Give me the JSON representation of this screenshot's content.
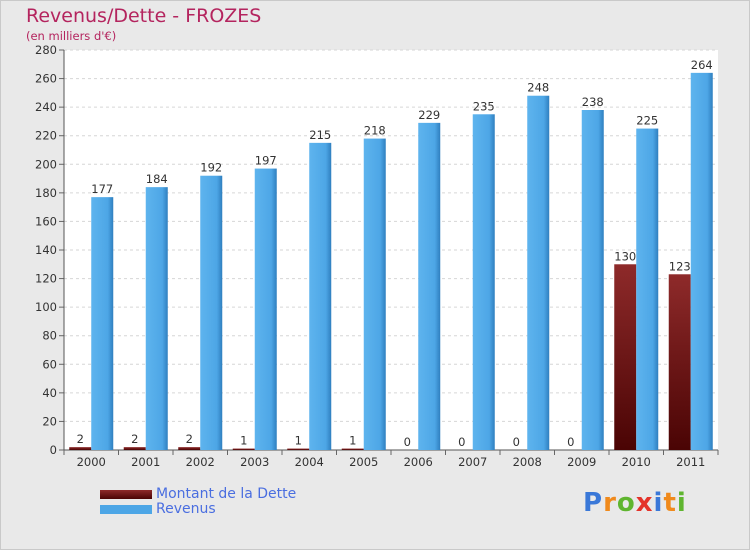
{
  "chart_data": {
    "type": "bar",
    "title": "Revenus/Dette - FROZES",
    "subtitle": "(en milliers d'€)",
    "categories": [
      "2000",
      "2001",
      "2002",
      "2003",
      "2004",
      "2005",
      "2006",
      "2007",
      "2008",
      "2009",
      "2010",
      "2011"
    ],
    "series": [
      {
        "name": "Montant de la Dette",
        "values": [
          2,
          2,
          2,
          1,
          1,
          1,
          0,
          0,
          0,
          0,
          130,
          123
        ],
        "color": "#7a1a1a"
      },
      {
        "name": "Revenus",
        "values": [
          177,
          184,
          192,
          197,
          215,
          218,
          229,
          235,
          248,
          238,
          225,
          264
        ],
        "color": "#4da6e6"
      }
    ],
    "ylim": [
      0,
      280
    ],
    "yticks": [
      0,
      20,
      40,
      60,
      80,
      100,
      120,
      140,
      160,
      180,
      200,
      220,
      240,
      260,
      280
    ],
    "grid": true,
    "legend_position": "bottom-left"
  },
  "logo": {
    "letters": [
      "P",
      "r",
      "o",
      "x",
      "i",
      "t",
      "i"
    ],
    "colors": [
      "#3a78d8",
      "#f08a1c",
      "#5fb52f",
      "#e4332a",
      "#3a78d8",
      "#f08a1c",
      "#5fb52f"
    ]
  }
}
